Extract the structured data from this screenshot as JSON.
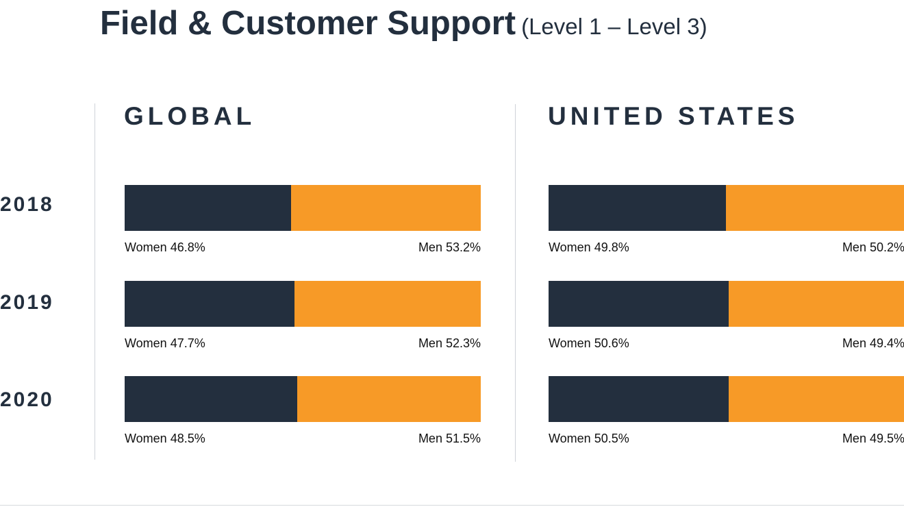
{
  "title": "Field & Customer Support",
  "subtitle": "(Level 1 – Level 3)",
  "colors": {
    "women": "#232f3e",
    "men": "#f79a27",
    "text": "#232f3e",
    "divider": "#cfd3d8"
  },
  "years": [
    "2018",
    "2019",
    "2020"
  ],
  "labels": {
    "women": "Women",
    "men": "Men"
  },
  "chart_data": [
    {
      "type": "bar",
      "stacked": true,
      "orientation": "horizontal",
      "title": "GLOBAL",
      "categories": [
        "2018",
        "2019",
        "2020"
      ],
      "series": [
        {
          "name": "Women",
          "values": [
            46.8,
            47.7,
            48.5
          ],
          "labels": [
            "46.8%",
            "47.7%",
            "48.5%"
          ]
        },
        {
          "name": "Men",
          "values": [
            53.2,
            52.3,
            51.5
          ],
          "labels": [
            "53.2%",
            "52.3%",
            "51.5%"
          ]
        }
      ],
      "xlim": [
        0,
        100
      ],
      "grid": false
    },
    {
      "type": "bar",
      "stacked": true,
      "orientation": "horizontal",
      "title": "UNITED STATES",
      "categories": [
        "2018",
        "2019",
        "2020"
      ],
      "series": [
        {
          "name": "Women",
          "values": [
            49.8,
            50.6,
            50.5
          ],
          "labels": [
            "49.8%",
            "50.6%",
            "50.5%"
          ]
        },
        {
          "name": "Men",
          "values": [
            50.2,
            49.4,
            49.5
          ],
          "labels": [
            "50.2%",
            "49.4%",
            "49.5%"
          ]
        }
      ],
      "xlim": [
        0,
        100
      ],
      "grid": false
    }
  ]
}
